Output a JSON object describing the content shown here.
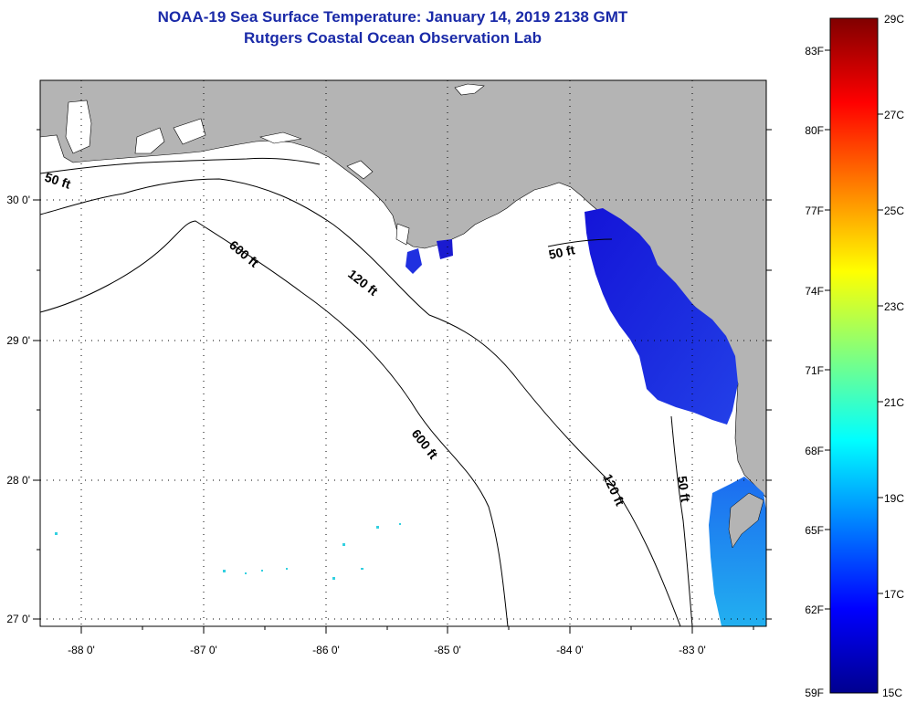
{
  "title": {
    "line1": "NOAA-19 Sea Surface Temperature:  January 14, 2019 2138 GMT",
    "line2": "Rutgers Coastal Ocean Observation Lab"
  },
  "map": {
    "longitude_labels": [
      "-88 0'",
      "-87 0'",
      "-86 0'",
      "-85 0'",
      "-84 0'",
      "-83 0'"
    ],
    "latitude_labels": [
      "30 0'",
      "29 0'",
      "28 0'",
      "27 0'"
    ],
    "isobath_labels": [
      "50 ft",
      "600 ft",
      "120 ft",
      "50 ft",
      "600 ft",
      "120 ft",
      "50 ft"
    ],
    "land_color": "#b4b4b4",
    "water_color": "#ffffff"
  },
  "colorbar": {
    "fahrenheit_labels": [
      "83F",
      "80F",
      "77F",
      "74F",
      "71F",
      "68F",
      "65F",
      "62F",
      "59F"
    ],
    "celsius_labels": [
      "29C",
      "27C",
      "25C",
      "23C",
      "21C",
      "19C",
      "17C",
      "15C"
    ],
    "range_c": [
      15,
      29
    ]
  }
}
